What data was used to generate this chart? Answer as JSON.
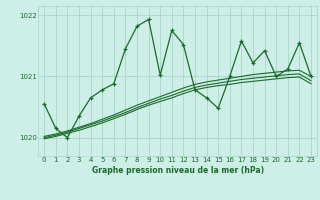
{
  "title": "Graphe pression niveau de la mer (hPa)",
  "background_color": "#ceeee8",
  "grid_color": "#aad4cc",
  "line_color": "#1a6b2a",
  "x_values": [
    0,
    1,
    2,
    3,
    4,
    5,
    6,
    7,
    8,
    9,
    10,
    11,
    12,
    13,
    14,
    15,
    16,
    17,
    18,
    19,
    20,
    21,
    22,
    23
  ],
  "main_series": [
    1020.55,
    1020.15,
    1020.0,
    1020.35,
    1020.65,
    1020.78,
    1020.88,
    1021.45,
    1021.82,
    1021.93,
    1021.02,
    1021.75,
    1021.52,
    1020.78,
    1020.65,
    1020.48,
    1021.0,
    1021.58,
    1021.22,
    1021.42,
    1021.0,
    1021.12,
    1021.55,
    1021.0
  ],
  "linear_series1": [
    1020.02,
    1020.06,
    1020.11,
    1020.17,
    1020.23,
    1020.3,
    1020.37,
    1020.45,
    1020.53,
    1020.6,
    1020.67,
    1020.74,
    1020.81,
    1020.87,
    1020.91,
    1020.94,
    1020.97,
    1021.0,
    1021.03,
    1021.05,
    1021.07,
    1021.09,
    1021.1,
    1021.0
  ],
  "linear_series2": [
    1020.0,
    1020.04,
    1020.09,
    1020.15,
    1020.21,
    1020.27,
    1020.34,
    1020.41,
    1020.49,
    1020.56,
    1020.63,
    1020.69,
    1020.76,
    1020.82,
    1020.86,
    1020.89,
    1020.92,
    1020.95,
    1020.97,
    1020.99,
    1021.01,
    1021.03,
    1021.04,
    1020.93
  ],
  "linear_series3": [
    1019.98,
    1020.02,
    1020.07,
    1020.12,
    1020.18,
    1020.24,
    1020.31,
    1020.38,
    1020.46,
    1020.53,
    1020.59,
    1020.65,
    1020.72,
    1020.78,
    1020.82,
    1020.85,
    1020.87,
    1020.9,
    1020.92,
    1020.94,
    1020.96,
    1020.98,
    1020.99,
    1020.88
  ],
  "ylim": [
    1019.7,
    1022.15
  ],
  "yticks": [
    1020,
    1021,
    1022
  ],
  "xlim": [
    -0.5,
    23.5
  ]
}
